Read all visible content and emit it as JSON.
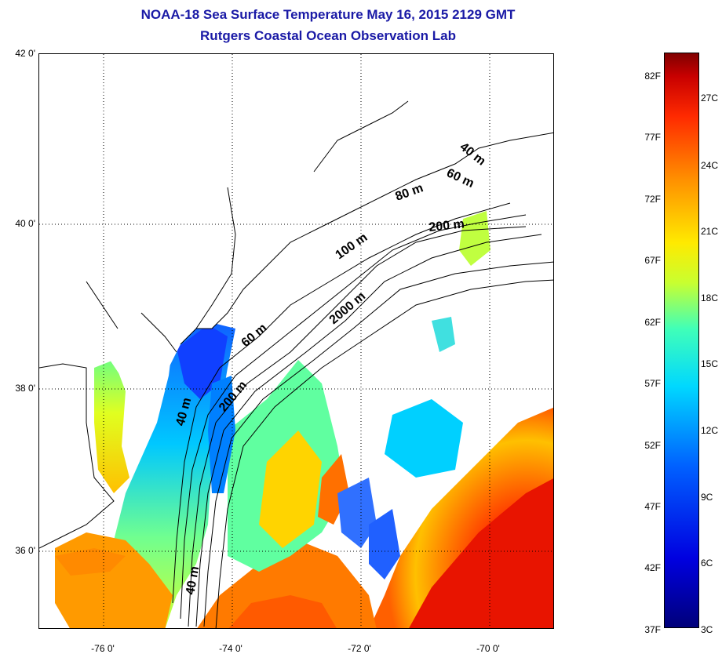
{
  "title": {
    "line1": "NOAA-18 Sea Surface Temperature May 16, 2015 2129 GMT",
    "line2": "Rutgers Coastal Ocean Observation Lab"
  },
  "axes": {
    "lat_labels": [
      "42 0'",
      "40 0'",
      "38 0'",
      "36 0'"
    ],
    "lon_labels": [
      "-76 0'",
      "-74 0'",
      "-72 0'",
      "-70 0'"
    ],
    "lat_range": [
      35.0,
      42.0
    ],
    "lon_range": [
      -77.0,
      -69.0
    ],
    "grid": "dotted"
  },
  "contours": {
    "labels": [
      "40 m",
      "60 m",
      "80 m",
      "200 m",
      "100 m",
      "2000 m",
      "60 m",
      "200 m",
      "40 m",
      "40 m"
    ]
  },
  "colorbar": {
    "f_ticks": [
      "82F",
      "77F",
      "72F",
      "67F",
      "62F",
      "57F",
      "52F",
      "47F",
      "42F",
      "37F"
    ],
    "c_ticks": [
      "27C",
      "24C",
      "21C",
      "18C",
      "15C",
      "12C",
      "9C",
      "6C",
      "3C"
    ],
    "range_c": [
      3,
      28
    ],
    "colormap": "jet"
  },
  "colors": {
    "title": "#1a1aa6",
    "land": "#ffffff",
    "coast": "#000000"
  }
}
